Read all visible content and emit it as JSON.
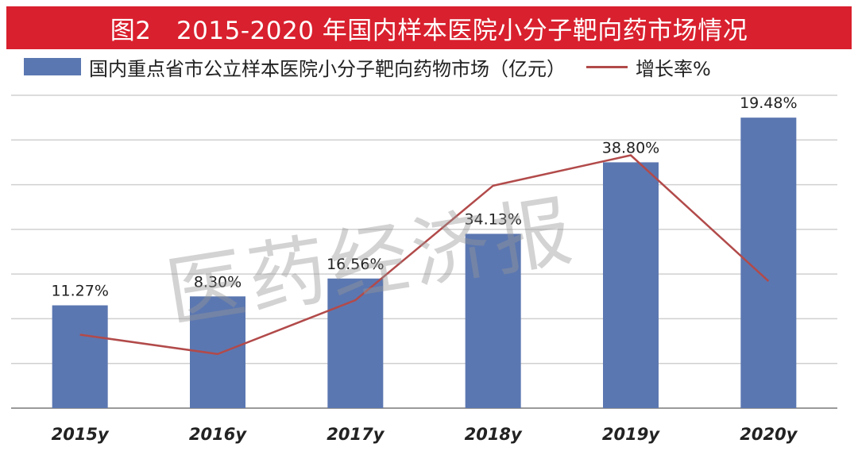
{
  "title": "图2　2015-2020 年国内样本医院小分子靶向药市场情况",
  "legend": {
    "bar_label": "国内重点省市公立样本医院小分子靶向药物市场（亿元）",
    "line_label": "增长率%"
  },
  "watermark": "医药经济报",
  "colors": {
    "title_bg": "#d9202e",
    "bar": "#5b77b1",
    "line": "#b24a4a",
    "grid": "#d0d0d0"
  },
  "chart_data": {
    "type": "bar",
    "categories": [
      "2015y",
      "2016y",
      "2017y",
      "2018y",
      "2019y",
      "2020y"
    ],
    "series": [
      {
        "name": "国内重点省市公立样本医院小分子靶向药物市场（亿元）",
        "type": "bar",
        "values": [
          23,
          25,
          29,
          39,
          55,
          65
        ]
      },
      {
        "name": "增长率%",
        "type": "line",
        "values": [
          11.27,
          8.3,
          16.56,
          34.13,
          38.8,
          19.48
        ],
        "labels": [
          "11.27%",
          "8.30%",
          "16.56%",
          "34.13%",
          "38.80%",
          "19.48%"
        ]
      }
    ],
    "ylim": [
      0,
      70
    ],
    "ylim_rate": [
      0,
      48
    ],
    "grid": true,
    "legend_position": "top"
  }
}
